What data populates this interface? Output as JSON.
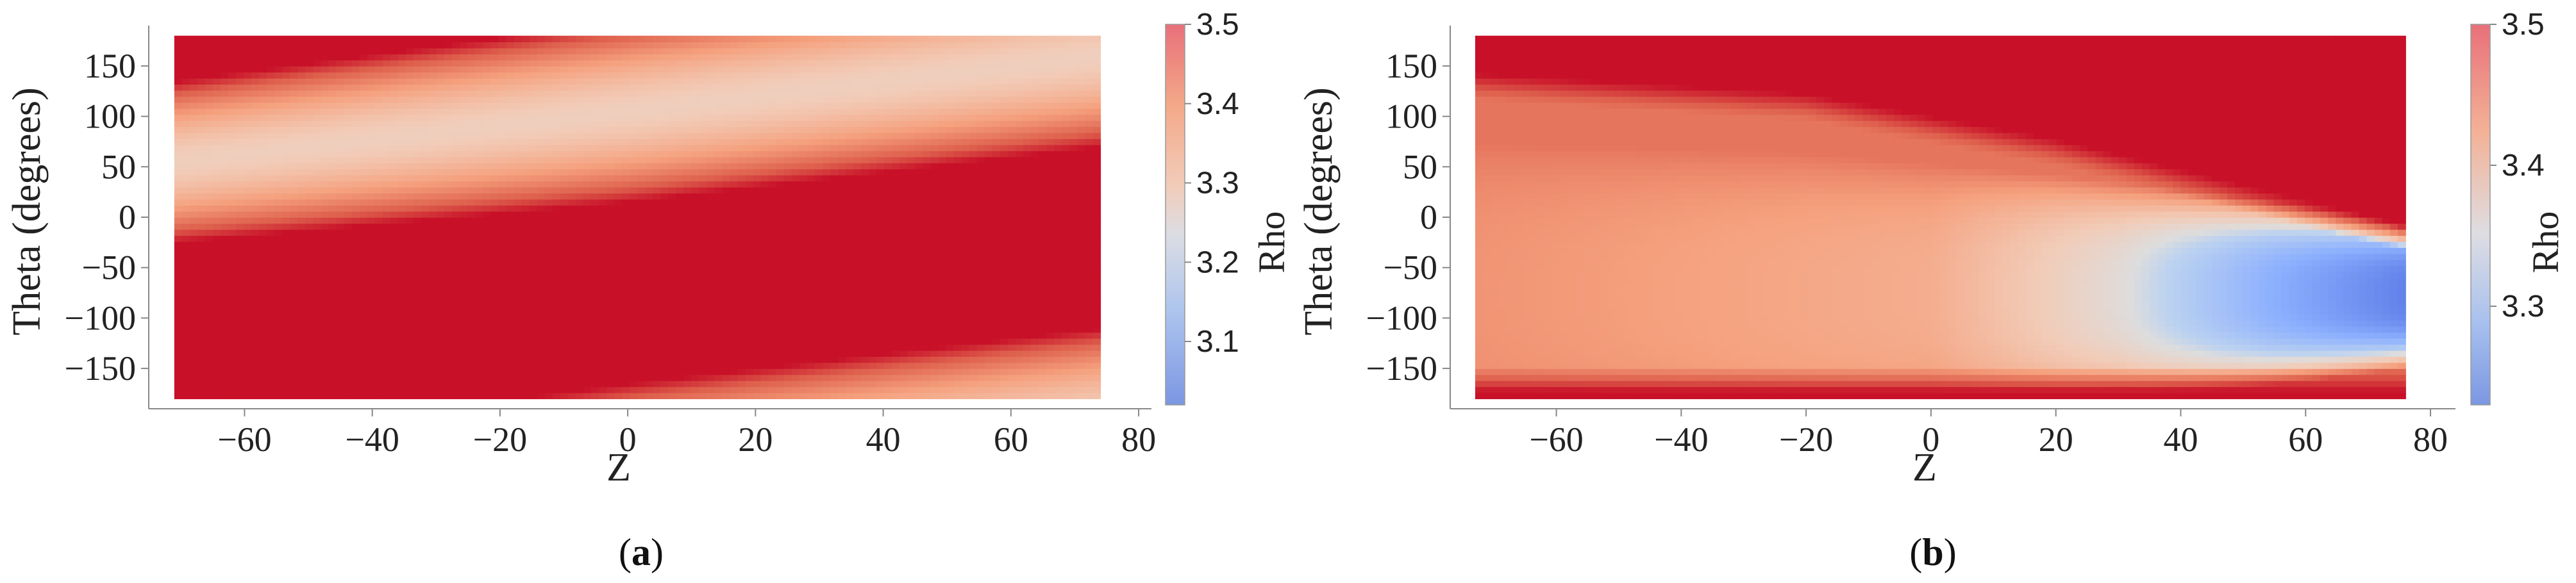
{
  "chart_data": [
    {
      "type": "heatmap",
      "caption": "a",
      "xlabel": "Z",
      "ylabel": "Theta (degrees)",
      "xlim": [
        -75,
        82
      ],
      "ylim": [
        -190,
        190
      ],
      "data_x_range": [
        -71,
        74
      ],
      "data_y_range": [
        -180,
        180
      ],
      "x_ticks": [
        -60,
        -40,
        -20,
        0,
        20,
        40,
        60,
        80
      ],
      "x_tick_labels": [
        "−60",
        "−40",
        "−20",
        "0",
        "20",
        "40",
        "60",
        "80"
      ],
      "y_ticks": [
        150,
        100,
        50,
        0,
        -50,
        -100,
        -150
      ],
      "y_tick_labels": [
        "150",
        "100",
        "50",
        "0",
        "−50",
        "−100",
        "−150"
      ],
      "colorbar": {
        "title": "Rho",
        "colormap": "coolwarm",
        "range": [
          3.02,
          3.5
        ],
        "ticks": [
          3.5,
          3.4,
          3.3,
          3.2,
          3.1
        ],
        "tick_labels": [
          "3.5",
          "3.4",
          "3.3",
          "3.2",
          "3.1"
        ]
      },
      "band": {
        "description": "lower-density band whose theta center shifts with Z",
        "points": [
          {
            "z": -71,
            "theta_center": 55,
            "theta_halfwidth": 80
          },
          {
            "z": 0,
            "theta_center": 105,
            "theta_halfwidth": 90
          },
          {
            "z": 74,
            "theta_center": 160,
            "theta_halfwidth": 90
          }
        ],
        "min_rho_at_center": 3.3
      },
      "background_rho": 3.5
    },
    {
      "type": "heatmap",
      "caption": "b",
      "xlabel": "Z",
      "ylabel": "Theta (degrees)",
      "xlim": [
        -77,
        84
      ],
      "ylim": [
        -190,
        190
      ],
      "data_x_range": [
        -73,
        76
      ],
      "data_y_range": [
        -180,
        180
      ],
      "x_ticks": [
        -60,
        -40,
        -20,
        0,
        20,
        40,
        60,
        80
      ],
      "x_tick_labels": [
        "−60",
        "−40",
        "−20",
        "0",
        "20",
        "40",
        "60",
        "80"
      ],
      "y_ticks": [
        150,
        100,
        50,
        0,
        -50,
        -100,
        -150
      ],
      "y_tick_labels": [
        "150",
        "100",
        "50",
        "0",
        "−50",
        "−100",
        "−150"
      ],
      "colorbar": {
        "title": "Rho",
        "colormap": "coolwarm",
        "range": [
          3.23,
          3.5
        ],
        "ticks": [
          3.5,
          3.4,
          3.3
        ],
        "tick_labels": [
          "3.5",
          "3.4",
          "3.3"
        ]
      },
      "region": {
        "description": "lower-density region below an upper boundary that descends with Z",
        "upper_boundary": [
          {
            "z": -73,
            "theta": 135
          },
          {
            "z": -20,
            "theta": 115
          },
          {
            "z": 20,
            "theta": 70
          },
          {
            "z": 76,
            "theta": -15
          }
        ],
        "lower_boundary_theta": -165,
        "rho_profile": [
          {
            "z": -73,
            "rho": 3.44
          },
          {
            "z": 0,
            "rho": 3.42
          },
          {
            "z": 30,
            "rho": 3.37
          },
          {
            "z": 55,
            "rho": 3.31
          },
          {
            "z": 76,
            "rho": 3.27
          }
        ],
        "min_center_theta": -75
      },
      "background_rho": 3.5
    }
  ]
}
